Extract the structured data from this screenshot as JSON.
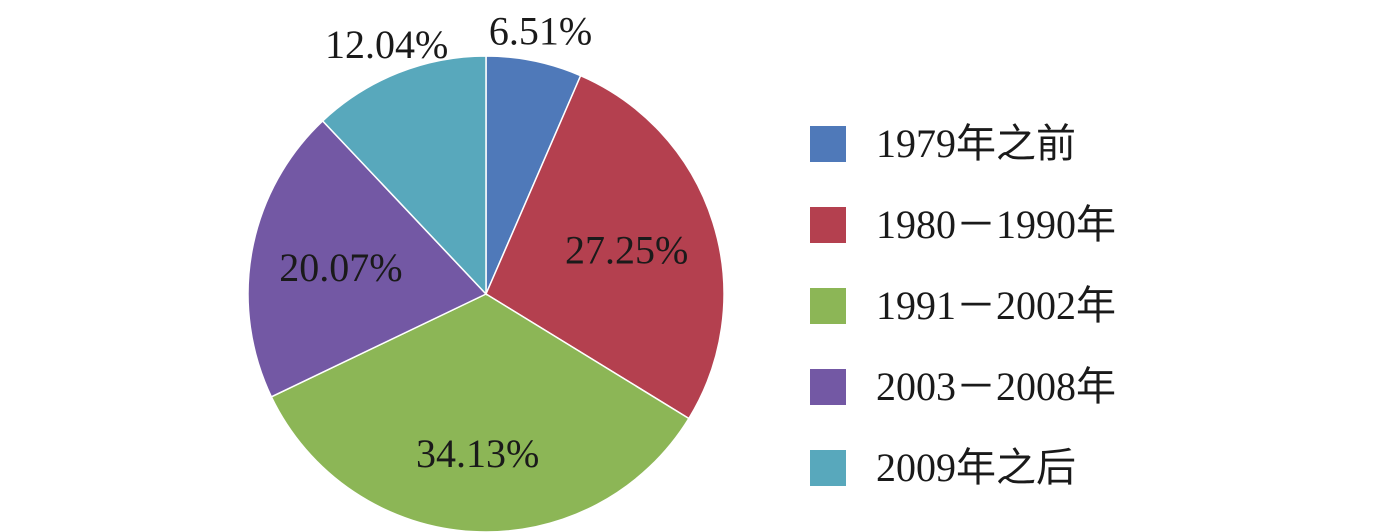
{
  "chart_data": {
    "type": "pie",
    "categories": [
      "1979年之前",
      "1980－1990年",
      "1991－2002年",
      "2003－2008年",
      "2009年之后"
    ],
    "values": [
      6.51,
      27.25,
      34.13,
      20.07,
      12.04
    ],
    "value_labels": [
      "6.51%",
      "27.25%",
      "34.13%",
      "20.07%",
      "12.04%"
    ],
    "colors": [
      "#4f79b9",
      "#b4404f",
      "#8cb656",
      "#7358a4",
      "#58a8bc"
    ],
    "start_angle_deg": 0,
    "direction": "clockwise",
    "legend_position": "right"
  }
}
